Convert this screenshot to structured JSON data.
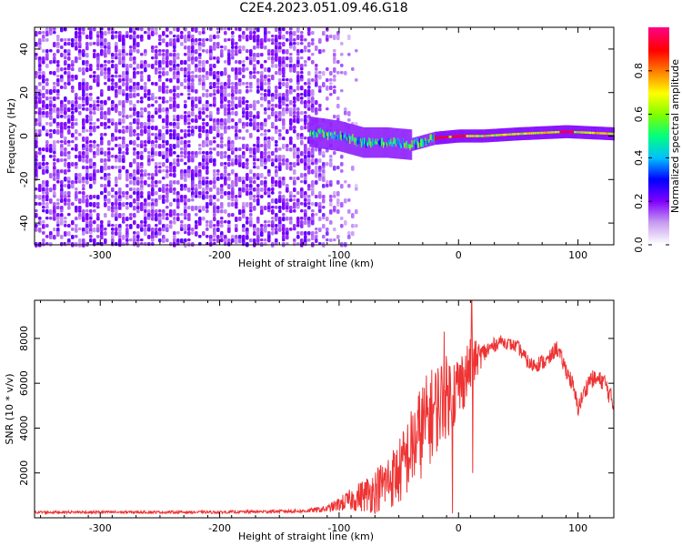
{
  "title": "C2E4.2023.051.09.46.G18",
  "chart_data": [
    {
      "type": "heatmap",
      "title": "C2E4.2023.051.09.46.G18",
      "xlabel": "Height of straight line (km)",
      "ylabel": "Frequency (Hz)",
      "xlim": [
        -355,
        130
      ],
      "ylim": [
        -50,
        50
      ],
      "x_ticks": [
        -300,
        -200,
        -100,
        0,
        100
      ],
      "x_tick_labels": [
        "-300",
        "-200",
        "-100",
        "0",
        "100"
      ],
      "y_ticks": [
        -40,
        -20,
        0,
        20,
        40
      ],
      "y_tick_labels": [
        "-40",
        "-20",
        "0",
        "20",
        "40"
      ],
      "colorbar": {
        "label": "Normalized spectral amplitude",
        "range": [
          0.0,
          1.0
        ],
        "ticks": [
          0.0,
          0.2,
          0.4,
          0.6,
          0.8
        ],
        "tick_labels": [
          "0.0",
          "0.2",
          "0.4",
          "0.6",
          "0.8"
        ],
        "colormap": [
          "#ffffff",
          "#c89cf0",
          "#8000ff",
          "#0000ff",
          "#00c0ff",
          "#00ff80",
          "#80ff00",
          "#ffff00",
          "#ff8000",
          "#ff0000",
          "#ff0080"
        ]
      },
      "noise_region_x": [
        -355,
        -110
      ],
      "noise_fade_x": [
        -130,
        -85
      ],
      "noise_level": 0.15,
      "signal": {
        "onset_x": -125,
        "frequency_track": [
          {
            "x": -125,
            "y": 2
          },
          {
            "x": -100,
            "y": 0
          },
          {
            "x": -80,
            "y": -3
          },
          {
            "x": -60,
            "y": -3
          },
          {
            "x": -40,
            "y": -4
          },
          {
            "x": -20,
            "y": -1
          },
          {
            "x": 0,
            "y": 0
          },
          {
            "x": 20,
            "y": 0
          },
          {
            "x": 50,
            "y": 1
          },
          {
            "x": 90,
            "y": 2
          },
          {
            "x": 130,
            "y": 1
          }
        ],
        "peak_amplitude_x": [
          -15,
          0,
          90
        ]
      }
    },
    {
      "type": "line",
      "xlabel": "Height of straight line (km)",
      "ylabel": "SNR (10 * v/v)",
      "xlim": [
        -355,
        130
      ],
      "ylim": [
        0,
        9700
      ],
      "x_ticks": [
        -300,
        -200,
        -100,
        0,
        100
      ],
      "x_tick_labels": [
        "-300",
        "-200",
        "-100",
        "0",
        "100"
      ],
      "y_ticks": [
        2000,
        4000,
        6000,
        8000
      ],
      "y_tick_labels": [
        "2000",
        "4000",
        "6000",
        "8000"
      ],
      "line_color": "#ee3333",
      "envelope": [
        {
          "x": -355,
          "mean": 250,
          "noise": 60
        },
        {
          "x": -200,
          "mean": 250,
          "noise": 60
        },
        {
          "x": -130,
          "mean": 300,
          "noise": 80
        },
        {
          "x": -110,
          "mean": 400,
          "noise": 150
        },
        {
          "x": -90,
          "mean": 800,
          "noise": 500
        },
        {
          "x": -70,
          "mean": 1200,
          "noise": 1000
        },
        {
          "x": -50,
          "mean": 2000,
          "noise": 1500
        },
        {
          "x": -30,
          "mean": 4000,
          "noise": 2200
        },
        {
          "x": -15,
          "mean": 5200,
          "noise": 2000
        },
        {
          "x": 0,
          "mean": 5800,
          "noise": 1600
        },
        {
          "x": 10,
          "mean": 6800,
          "noise": 1200
        },
        {
          "x": 20,
          "mean": 7300,
          "noise": 500
        },
        {
          "x": 35,
          "mean": 7900,
          "noise": 250
        },
        {
          "x": 50,
          "mean": 7600,
          "noise": 300
        },
        {
          "x": 60,
          "mean": 6800,
          "noise": 350
        },
        {
          "x": 75,
          "mean": 7000,
          "noise": 350
        },
        {
          "x": 82,
          "mean": 7600,
          "noise": 350
        },
        {
          "x": 95,
          "mean": 6000,
          "noise": 400
        },
        {
          "x": 100,
          "mean": 4900,
          "noise": 400
        },
        {
          "x": 110,
          "mean": 6200,
          "noise": 400
        },
        {
          "x": 122,
          "mean": 6100,
          "noise": 400
        },
        {
          "x": 130,
          "mean": 5000,
          "noise": 500
        }
      ],
      "spikes": [
        {
          "x": 11,
          "y": 9800
        },
        {
          "x": 12,
          "y": 2000
        },
        {
          "x": -12,
          "y": 8300
        },
        {
          "x": -5,
          "y": 200
        }
      ]
    }
  ]
}
